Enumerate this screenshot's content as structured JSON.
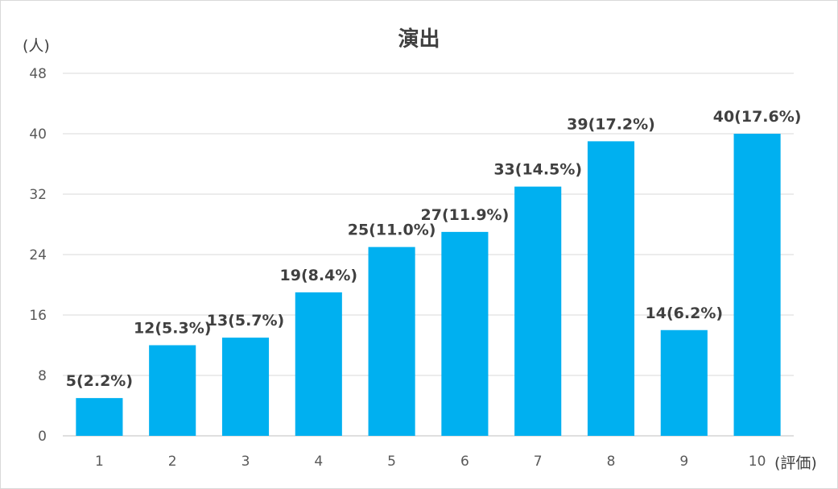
{
  "chart_data": {
    "type": "bar",
    "title": "演出",
    "ylabel": "(人)",
    "xlabel": "(評価)",
    "categories": [
      "1",
      "2",
      "3",
      "4",
      "5",
      "6",
      "7",
      "8",
      "9",
      "10"
    ],
    "values": [
      5,
      12,
      13,
      19,
      25,
      27,
      33,
      39,
      14,
      40
    ],
    "data_labels": [
      "5(2.2%)",
      "12(5.3%)",
      "13(5.7%)",
      "19(8.4%)",
      "25(11.0%)",
      "27(11.9%)",
      "33(14.5%)",
      "39(17.2%)",
      "14(6.2%)",
      "40(17.6%)"
    ],
    "yticks": [
      "0",
      "8",
      "16",
      "24",
      "32",
      "40",
      "48"
    ],
    "ylim": [
      0,
      48
    ],
    "grid": true,
    "legend": "none",
    "bar_color": "#00b0f0"
  }
}
